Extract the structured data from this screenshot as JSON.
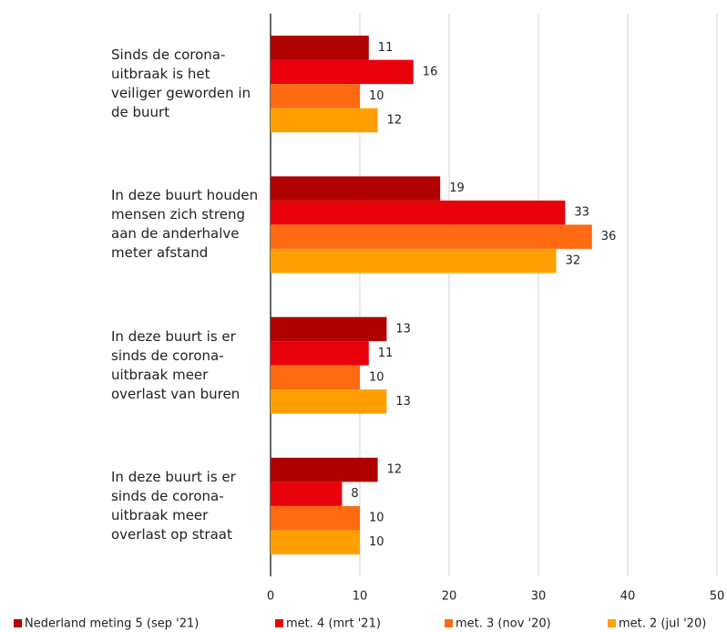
{
  "chart_data": {
    "type": "bar",
    "orientation": "horizontal",
    "categories": [
      "Sinds de corona-uitbraak is het veiliger geworden in de buurt",
      "In deze buurt houden mensen zich streng aan de anderhalve meter afstand",
      "In deze buurt is er sinds de corona-uitbraak meer overlast van buren",
      "In deze buurt is er sinds de corona-uitbraak meer overlast op straat"
    ],
    "series": [
      {
        "name": "Nederland meting 5 (sep '21)",
        "color": "#b00000",
        "values": [
          11,
          19,
          13,
          12
        ]
      },
      {
        "name": "met. 4 (mrt '21)",
        "color": "#e8000b",
        "values": [
          16,
          33,
          11,
          8
        ]
      },
      {
        "name": "met. 3 (nov '20)",
        "color": "#ff6a13",
        "values": [
          10,
          36,
          10,
          10
        ]
      },
      {
        "name": "met. 2 (jul '20)",
        "color": "#ffa000",
        "values": [
          12,
          32,
          13,
          10
        ]
      }
    ],
    "xlim": [
      0,
      50
    ],
    "xticks": [
      0,
      10,
      20,
      30,
      40,
      50
    ],
    "grid": true,
    "legend": "bottom"
  }
}
